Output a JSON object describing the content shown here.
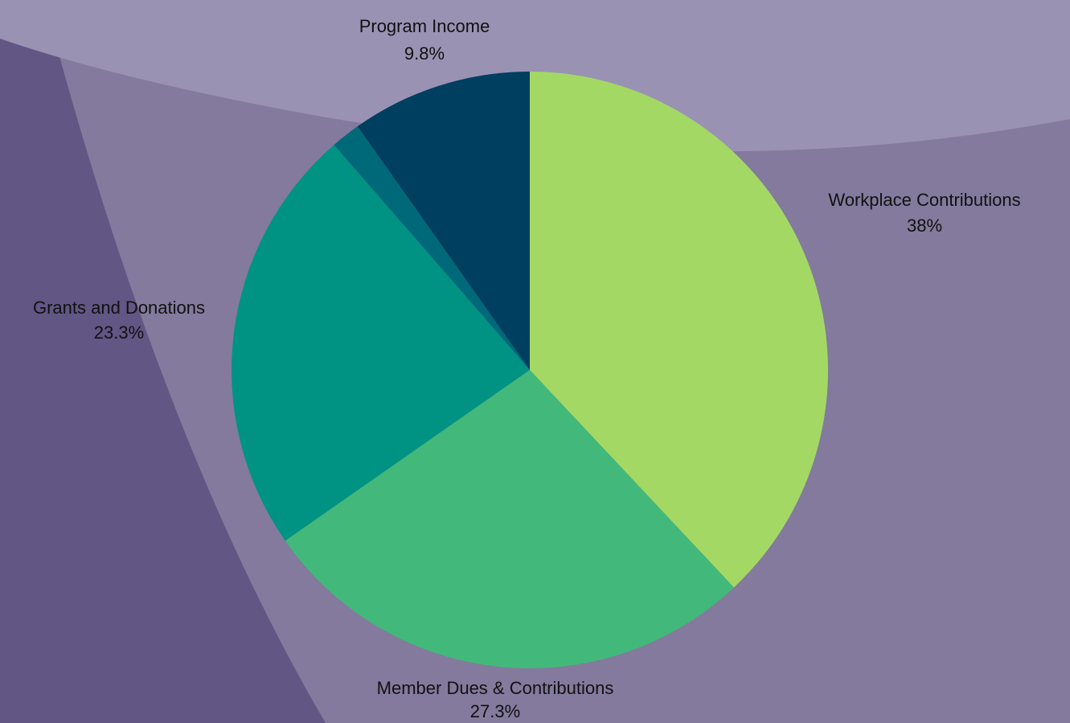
{
  "colors": {
    "background": "#837a9d",
    "left_band": "#625685",
    "top_band": "#9a92b3"
  },
  "chart_data": {
    "type": "pie",
    "title": "",
    "slices": [
      {
        "label": "Workplace Contributions",
        "value_label": "38%",
        "value": 38.0,
        "color": "#a3d865"
      },
      {
        "label": "Member Dues & Contributions",
        "value_label": "27.3%",
        "value": 27.3,
        "color": "#42b97a"
      },
      {
        "label": "Grants and Donations",
        "value_label": "23.3%",
        "value": 23.3,
        "color": "#009383"
      },
      {
        "label": "",
        "value_label": "",
        "value": 1.6,
        "color": "#006979"
      },
      {
        "label": "Program Income",
        "value_label": "9.8%",
        "value": 9.8,
        "color": "#003f5f"
      }
    ],
    "start_angle": "12 o'clock",
    "direction": "clockwise",
    "legend": "none"
  }
}
